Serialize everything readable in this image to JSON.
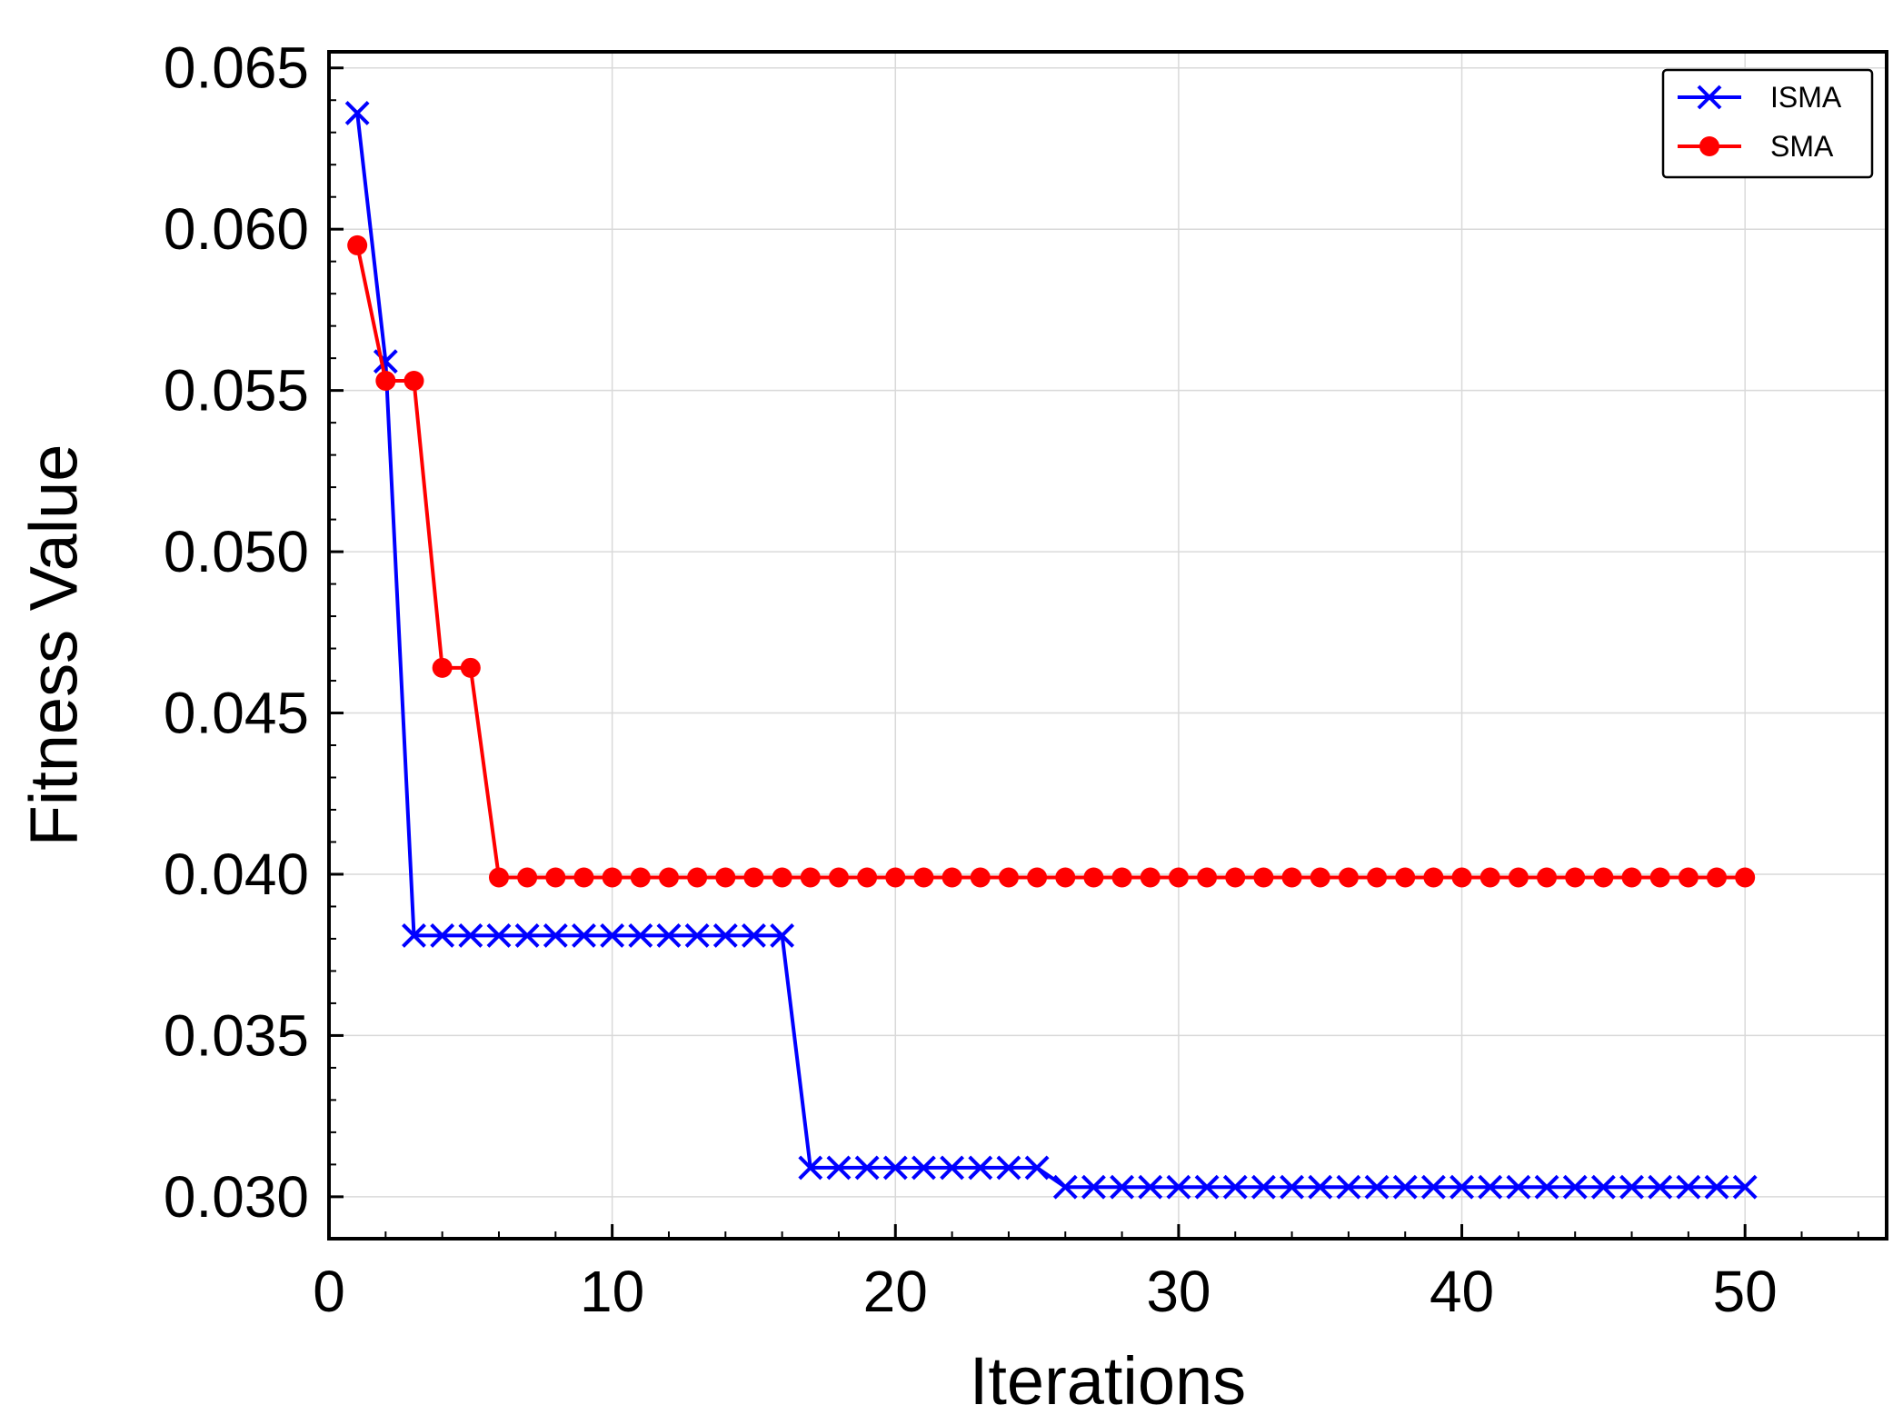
{
  "chart_data": {
    "type": "line",
    "xlabel": "Iterations",
    "ylabel": "Fitness Value",
    "xlim": [
      0,
      55
    ],
    "ylim": [
      0.0287,
      0.0655
    ],
    "xticks": [
      0,
      10,
      20,
      30,
      40,
      50
    ],
    "xtick_labels": [
      "0",
      "10",
      "20",
      "30",
      "40",
      "50"
    ],
    "yticks": [
      0.03,
      0.035,
      0.04,
      0.045,
      0.05,
      0.055,
      0.06,
      0.065
    ],
    "ytick_labels": [
      "0.030",
      "0.035",
      "0.040",
      "0.045",
      "0.050",
      "0.055",
      "0.060",
      "0.065"
    ],
    "grid": true,
    "legend_position": "top-right",
    "x": [
      1,
      2,
      3,
      4,
      5,
      6,
      7,
      8,
      9,
      10,
      11,
      12,
      13,
      14,
      15,
      16,
      17,
      18,
      19,
      20,
      21,
      22,
      23,
      24,
      25,
      26,
      27,
      28,
      29,
      30,
      31,
      32,
      33,
      34,
      35,
      36,
      37,
      38,
      39,
      40,
      41,
      42,
      43,
      44,
      45,
      46,
      47,
      48,
      49,
      50
    ],
    "series": [
      {
        "name": "ISMA",
        "color": "#0000ff",
        "marker": "x",
        "values": [
          0.0636,
          0.0559,
          0.0381,
          0.0381,
          0.0381,
          0.0381,
          0.0381,
          0.0381,
          0.0381,
          0.0381,
          0.0381,
          0.0381,
          0.0381,
          0.0381,
          0.0381,
          0.0381,
          0.0309,
          0.0309,
          0.0309,
          0.0309,
          0.0309,
          0.0309,
          0.0309,
          0.0309,
          0.0309,
          0.0303,
          0.0303,
          0.0303,
          0.0303,
          0.0303,
          0.0303,
          0.0303,
          0.0303,
          0.0303,
          0.0303,
          0.0303,
          0.0303,
          0.0303,
          0.0303,
          0.0303,
          0.0303,
          0.0303,
          0.0303,
          0.0303,
          0.0303,
          0.0303,
          0.0303,
          0.0303,
          0.0303,
          0.0303
        ]
      },
      {
        "name": "SMA",
        "color": "#ff0000",
        "marker": "o",
        "values": [
          0.0595,
          0.0553,
          0.0553,
          0.0464,
          0.0464,
          0.0399,
          0.0399,
          0.0399,
          0.0399,
          0.0399,
          0.0399,
          0.0399,
          0.0399,
          0.0399,
          0.0399,
          0.0399,
          0.0399,
          0.0399,
          0.0399,
          0.0399,
          0.0399,
          0.0399,
          0.0399,
          0.0399,
          0.0399,
          0.0399,
          0.0399,
          0.0399,
          0.0399,
          0.0399,
          0.0399,
          0.0399,
          0.0399,
          0.0399,
          0.0399,
          0.0399,
          0.0399,
          0.0399,
          0.0399,
          0.0399,
          0.0399,
          0.0399,
          0.0399,
          0.0399,
          0.0399,
          0.0399,
          0.0399,
          0.0399,
          0.0399,
          0.0399
        ]
      }
    ]
  }
}
